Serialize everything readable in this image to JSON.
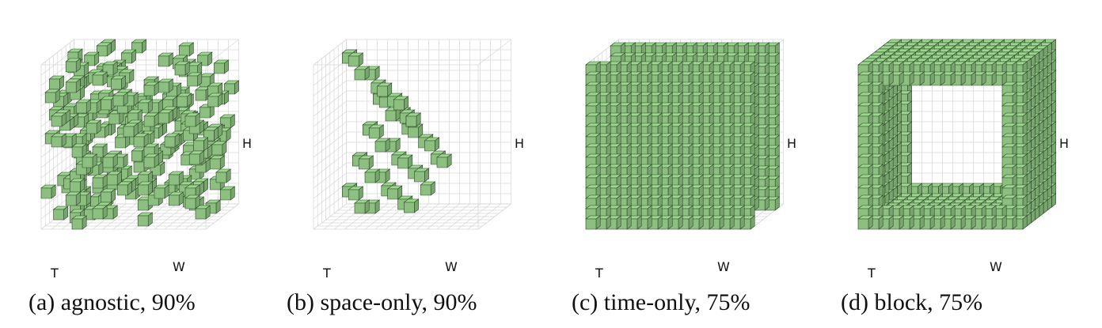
{
  "figure": {
    "cube_color": "#8cbf80",
    "cube_edge_color": "#2e4a2a",
    "grid_color": "#d6d6d6",
    "panels": [
      {
        "id": "a",
        "caption": "(a) agnostic, 90%",
        "axes": {
          "h": "H",
          "t": "T",
          "w": "W"
        },
        "pattern": "random"
      },
      {
        "id": "b",
        "caption": "(b) space-only, 90%",
        "axes": {
          "h": "H",
          "t": "T",
          "w": "W"
        },
        "pattern": "diagonal-strips"
      },
      {
        "id": "c",
        "caption": "(c) time-only, 75%",
        "axes": {
          "h": "H",
          "t": "T",
          "w": "W"
        },
        "pattern": "two-frames"
      },
      {
        "id": "d",
        "caption": "(d) block, 75%",
        "axes": {
          "h": "H",
          "t": "T",
          "w": "W"
        },
        "pattern": "frame-block"
      }
    ]
  }
}
